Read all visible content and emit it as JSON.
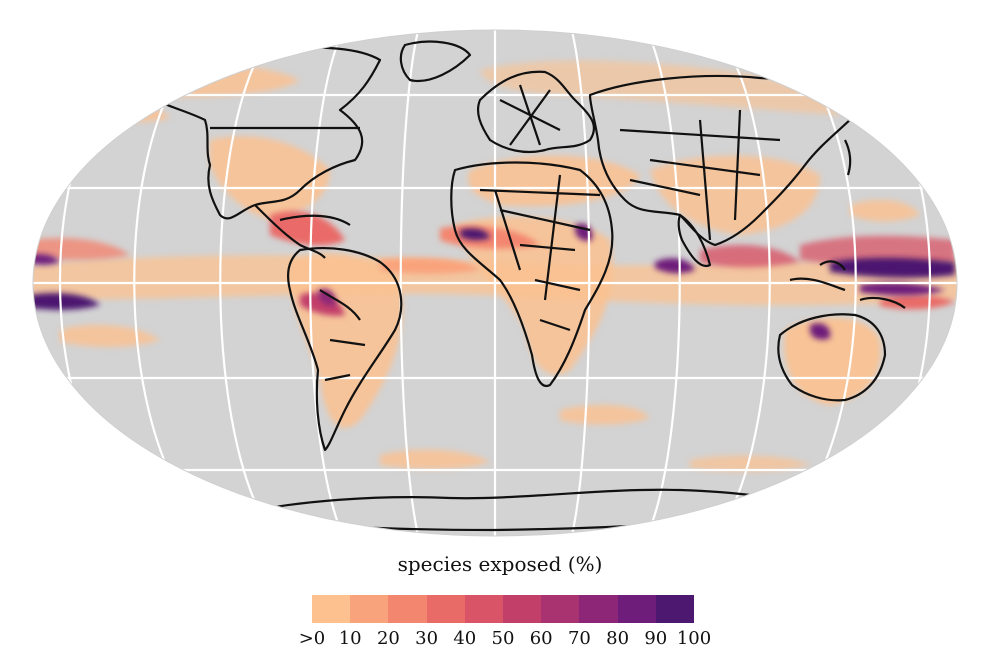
{
  "legend": {
    "title": "species exposed (%)",
    "ticks": [
      ">0",
      "10",
      "20",
      "30",
      "40",
      "50",
      "60",
      "70",
      "80",
      "90",
      "100"
    ],
    "colors": [
      "#fcc18f",
      "#f9a37c",
      "#f3866f",
      "#e96b68",
      "#d85466",
      "#c23f6a",
      "#a93271",
      "#8d2677",
      "#6e1e7a",
      "#4c1870"
    ]
  },
  "map": {
    "ocean_color": "#d3d3d3",
    "graticule_color": "#ffffff",
    "coast_color": "#111111",
    "projection": "robinson"
  }
}
